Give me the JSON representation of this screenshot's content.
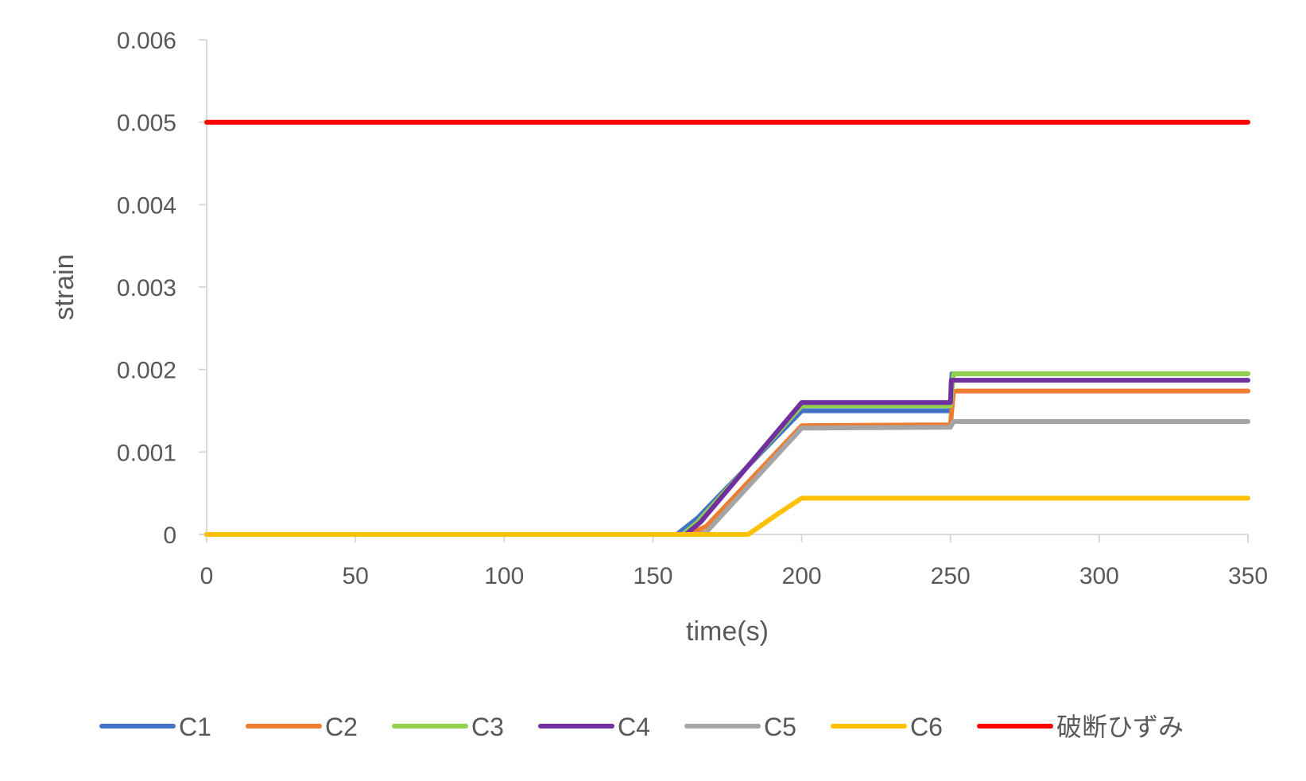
{
  "chart_data": {
    "type": "line",
    "xlabel": "time(s)",
    "ylabel": "strain",
    "xlim": [
      0,
      350
    ],
    "ylim": [
      0,
      0.006
    ],
    "x_ticks": [
      "0",
      "50",
      "100",
      "150",
      "200",
      "250",
      "300",
      "350"
    ],
    "y_ticks": [
      "0",
      "0.001",
      "0.002",
      "0.003",
      "0.004",
      "0.005",
      "0.006"
    ],
    "legend_position": "bottom",
    "gridlines": false,
    "series": [
      {
        "name": "C1",
        "color": "#4472C4",
        "points": [
          [
            0,
            0
          ],
          [
            158,
            0
          ],
          [
            165,
            0.0002
          ],
          [
            200,
            0.0015
          ],
          [
            250,
            0.0015
          ],
          [
            250.5,
            0.00195
          ],
          [
            350,
            0.00195
          ]
        ]
      },
      {
        "name": "C2",
        "color": "#ED7D31",
        "points": [
          [
            0,
            0
          ],
          [
            162,
            0
          ],
          [
            168,
            0.0001
          ],
          [
            200,
            0.00132
          ],
          [
            250,
            0.00133
          ],
          [
            251,
            0.00173
          ],
          [
            252,
            0.00174
          ],
          [
            350,
            0.00174
          ]
        ]
      },
      {
        "name": "C3",
        "color": "#92D050",
        "points": [
          [
            0,
            0
          ],
          [
            160,
            0
          ],
          [
            165,
            0.00015
          ],
          [
            200,
            0.00156
          ],
          [
            250,
            0.00156
          ],
          [
            251,
            0.00195
          ],
          [
            350,
            0.00195
          ]
        ]
      },
      {
        "name": "C4",
        "color": "#7030A0",
        "points": [
          [
            0,
            0
          ],
          [
            161,
            0
          ],
          [
            166,
            0.00015
          ],
          [
            200,
            0.0016
          ],
          [
            250,
            0.0016
          ],
          [
            250.3,
            0.00187
          ],
          [
            350,
            0.00187
          ]
        ]
      },
      {
        "name": "C5",
        "color": "#A5A5A5",
        "points": [
          [
            0,
            0
          ],
          [
            165,
            0
          ],
          [
            168,
            3e-05
          ],
          [
            200,
            0.00129
          ],
          [
            250,
            0.0013
          ],
          [
            251,
            0.00137
          ],
          [
            350,
            0.00137
          ]
        ]
      },
      {
        "name": "C6",
        "color": "#FFC000",
        "points": [
          [
            0,
            0
          ],
          [
            182,
            0
          ],
          [
            192,
            0.00025
          ],
          [
            200,
            0.00044
          ],
          [
            350,
            0.00044
          ]
        ]
      },
      {
        "name": "破断ひずみ",
        "color": "#FF0000",
        "points": [
          [
            0,
            0.005
          ],
          [
            350,
            0.005
          ]
        ]
      }
    ]
  }
}
